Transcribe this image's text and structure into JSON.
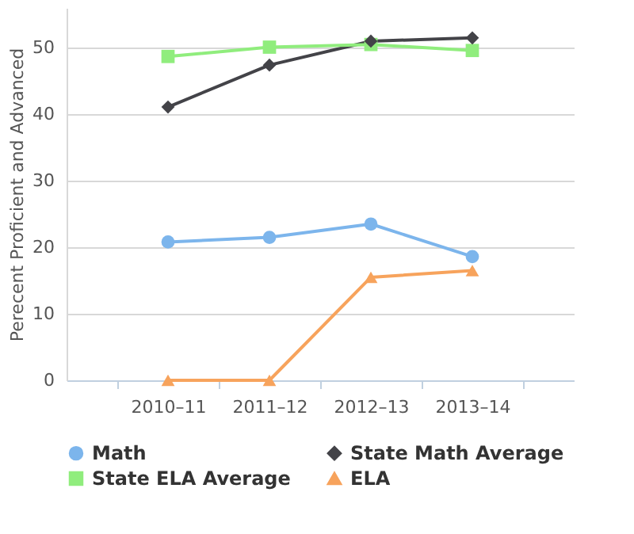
{
  "chart_data": {
    "type": "line",
    "ylabel": "Perecent Proficient and Advanced",
    "categories": [
      "2010–11",
      "2011–12",
      "2012–13",
      "2013–14"
    ],
    "series": [
      {
        "name": "Math",
        "color": "#7cb5ec",
        "marker": "circle",
        "values": [
          20.8,
          21.5,
          23.5,
          18.6
        ]
      },
      {
        "name": "State Math Average",
        "color": "#434348",
        "marker": "diamond",
        "values": [
          41.1,
          47.4,
          51.0,
          51.5
        ]
      },
      {
        "name": "State ELA Average",
        "color": "#90ed7d",
        "marker": "square",
        "values": [
          48.7,
          50.1,
          50.5,
          49.6
        ]
      },
      {
        "name": "ELA",
        "color": "#f7a35c",
        "marker": "triangle",
        "values": [
          0,
          0,
          15.5,
          16.5
        ]
      }
    ],
    "ylim": [
      0,
      56
    ],
    "yticks": [
      0,
      10,
      20,
      30,
      40,
      50
    ],
    "grid": "y",
    "legend": "bottom",
    "line_style": "solid"
  }
}
